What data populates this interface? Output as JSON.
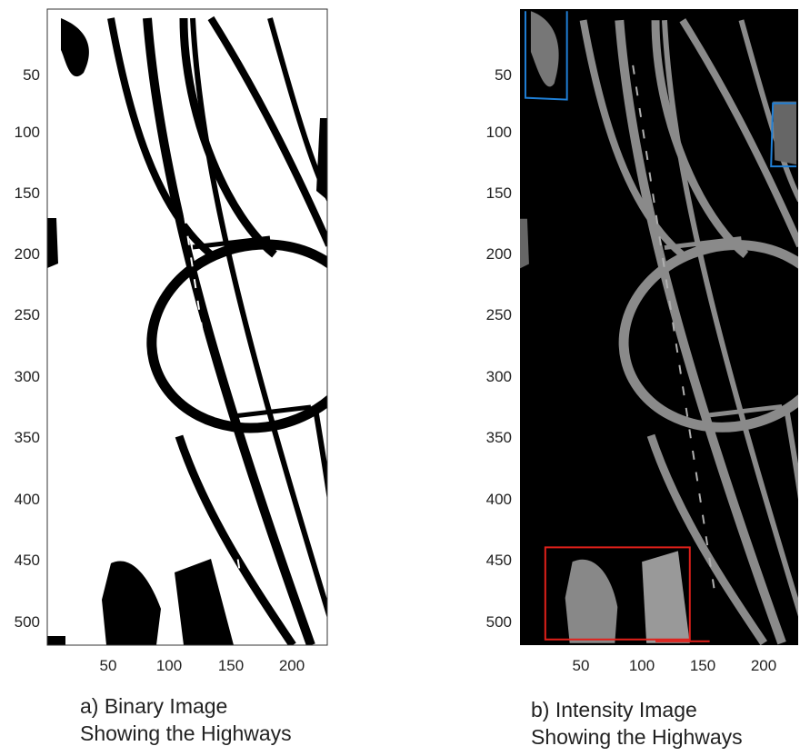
{
  "panel_a": {
    "caption_line1": "a)  Binary Image",
    "caption_line2": "Showing the Highways",
    "y_ticks": [
      "50",
      "100",
      "150",
      "200",
      "250",
      "300",
      "350",
      "400",
      "450",
      "500"
    ],
    "x_ticks": [
      "50",
      "100",
      "150",
      "200"
    ]
  },
  "panel_b": {
    "caption_line1": "b)  Intensity Image",
    "caption_line2": "Showing the Highways",
    "y_ticks": [
      "50",
      "100",
      "150",
      "200",
      "250",
      "300",
      "350",
      "400",
      "450",
      "500"
    ],
    "x_ticks": [
      "50",
      "100",
      "150",
      "200"
    ]
  },
  "colors": {
    "road_dark": "#000000",
    "road_light": "#8a8a8a",
    "box_blue": "#1f7fd6",
    "box_red": "#e0201a"
  }
}
